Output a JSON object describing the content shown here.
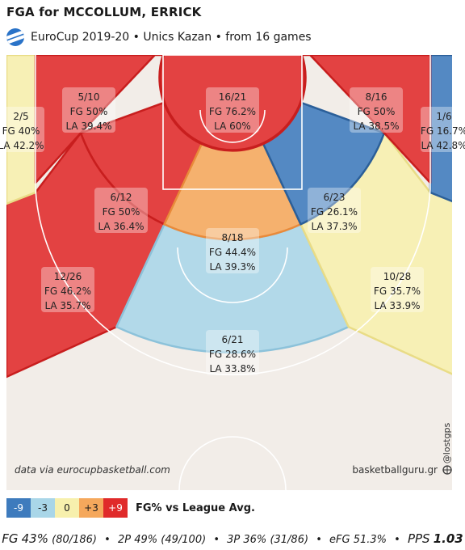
{
  "header": {
    "title": "FGA for MCCOLLUM, ERRICK",
    "subtitle": "EuroCup 2019-20 • Unics Kazan • from  16 games"
  },
  "credits": {
    "source": "data via eurocupbasketball.com",
    "site": "basketballguru.gr",
    "handle": "@lostgps"
  },
  "colors": {
    "minus9": "#3e7bbd",
    "minus3": "#a9d6e8",
    "zero": "#f7f0ad",
    "plus3": "#f5a85c",
    "plus9": "#e02a2a",
    "court_bg": "#f2ede8",
    "court_line": "#ffffff"
  },
  "legend": {
    "label": "FG% vs League Avg.",
    "items": [
      {
        "label": "-9",
        "color": "#3e7bbd",
        "text_color": "#ffffff"
      },
      {
        "label": "-3",
        "color": "#a9d6e8",
        "text_color": "#1a1a1a"
      },
      {
        "label": "0",
        "color": "#f7f0ad",
        "text_color": "#1a1a1a"
      },
      {
        "label": "+3",
        "color": "#f5a85c",
        "text_color": "#1a1a1a"
      },
      {
        "label": "+9",
        "color": "#e02a2a",
        "text_color": "#ffffff"
      }
    ]
  },
  "summary": {
    "fg_label": "FG",
    "fg_value": "43%",
    "fg_detail": "(80/186)",
    "two_label": "2P",
    "two_value": "49%",
    "two_detail": "(49/100)",
    "three_label": "3P",
    "three_value": "36%",
    "three_detail": "(31/86)",
    "efg_label": "eFG",
    "efg_value": "51.3%",
    "pps_label": "PPS",
    "pps_value": "1.03"
  },
  "chart_data": {
    "type": "heatmap",
    "zones": [
      {
        "zone": "left-corner-3",
        "made": 2,
        "attempts": 5,
        "fgm_fga": "2/5",
        "fg": "FG 40%",
        "la": "LA 42.2%",
        "rating": "zero"
      },
      {
        "zone": "left-baseline-mid",
        "made": 5,
        "attempts": 10,
        "fgm_fga": "5/10",
        "fg": "FG 50%",
        "la": "LA 39.4%",
        "rating": "plus9"
      },
      {
        "zone": "restricted-area",
        "made": 16,
        "attempts": 21,
        "fgm_fga": "16/21",
        "fg": "FG 76.2%",
        "la": "LA 60%",
        "rating": "plus9"
      },
      {
        "zone": "right-baseline-mid",
        "made": 8,
        "attempts": 16,
        "fgm_fga": "8/16",
        "fg": "FG 50%",
        "la": "LA 38.5%",
        "rating": "plus9"
      },
      {
        "zone": "right-corner-3",
        "made": 1,
        "attempts": 6,
        "fgm_fga": "1/6",
        "fg": "FG 16.7%",
        "la": "LA 42.8%",
        "rating": "minus9"
      },
      {
        "zone": "left-elbow-mid",
        "made": 6,
        "attempts": 12,
        "fgm_fga": "6/12",
        "fg": "FG 50%",
        "la": "LA 36.4%",
        "rating": "plus9"
      },
      {
        "zone": "right-elbow-mid",
        "made": 6,
        "attempts": 23,
        "fgm_fga": "6/23",
        "fg": "FG 26.1%",
        "la": "LA 37.3%",
        "rating": "minus9"
      },
      {
        "zone": "top-key-mid",
        "made": 8,
        "attempts": 18,
        "fgm_fga": "8/18",
        "fg": "FG 44.4%",
        "la": "LA 39.3%",
        "rating": "plus3"
      },
      {
        "zone": "left-wing-3",
        "made": 12,
        "attempts": 26,
        "fgm_fga": "12/26",
        "fg": "FG 46.2%",
        "la": "LA 35.7%",
        "rating": "plus9"
      },
      {
        "zone": "right-wing-3",
        "made": 10,
        "attempts": 28,
        "fgm_fga": "10/28",
        "fg": "FG 35.7%",
        "la": "LA 33.9%",
        "rating": "zero"
      },
      {
        "zone": "top-key-3",
        "made": 6,
        "attempts": 21,
        "fgm_fga": "6/21",
        "fg": "FG 28.6%",
        "la": "LA 33.8%",
        "rating": "minus3"
      }
    ]
  }
}
